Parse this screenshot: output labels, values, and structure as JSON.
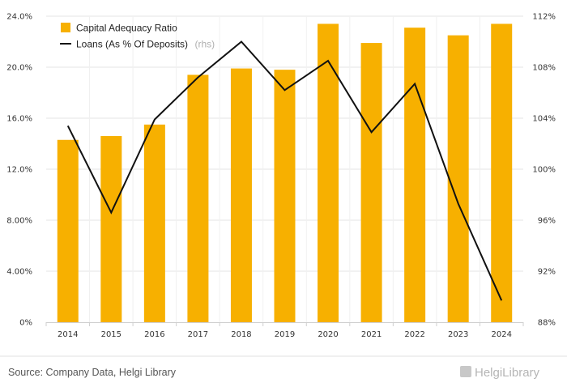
{
  "chart_data": {
    "type": "bar",
    "categories": [
      "2014",
      "2015",
      "2016",
      "2017",
      "2018",
      "2019",
      "2020",
      "2021",
      "2022",
      "2023",
      "2024"
    ],
    "series": [
      {
        "name": "Capital Adequacy Ratio",
        "type": "bar",
        "axis": "left",
        "values": [
          14.3,
          14.6,
          15.5,
          19.4,
          19.9,
          19.8,
          23.4,
          21.9,
          23.1,
          22.5,
          23.4
        ]
      },
      {
        "name": "Loans (As % Of Deposits)",
        "name_suffix": "(rhs)",
        "type": "line",
        "axis": "right",
        "values": [
          103.4,
          96.6,
          103.9,
          107.2,
          110.0,
          106.2,
          108.5,
          102.9,
          106.7,
          97.3,
          89.7
        ]
      }
    ],
    "y_left": {
      "ylim": [
        0,
        24
      ],
      "ticks": [
        "0%",
        "4.00%",
        "8.00%",
        "12.0%",
        "16.0%",
        "20.0%",
        "24.0%"
      ]
    },
    "y_right": {
      "ylim": [
        88,
        112
      ],
      "ticks": [
        "88%",
        "92%",
        "96%",
        "100%",
        "104%",
        "108%",
        "112%"
      ]
    },
    "grid": true,
    "legend_position": "top-left",
    "colors": {
      "bar": "#f7b000",
      "line": "#111111",
      "grid": "#e6e6e6"
    }
  },
  "footer": {
    "source": "Source: Company Data, Helgi Library",
    "brand": "HelgiLibrary"
  }
}
